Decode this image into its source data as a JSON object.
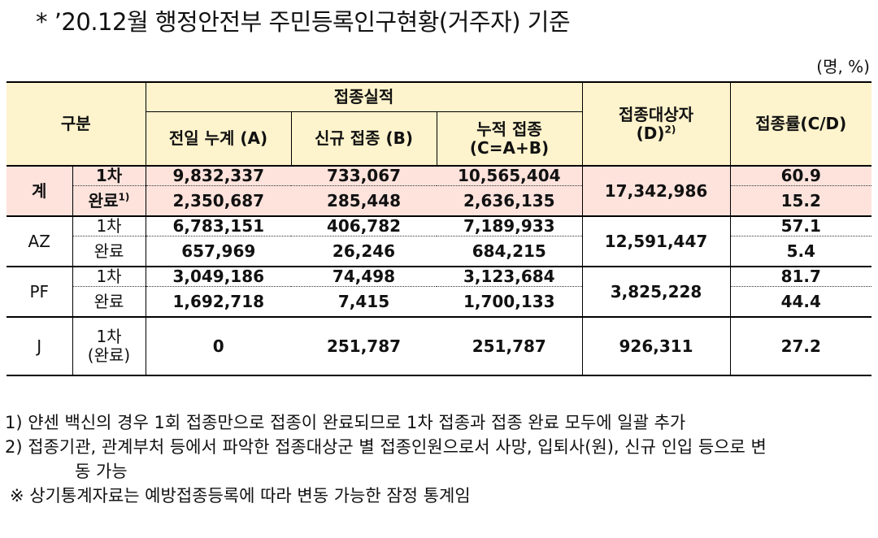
{
  "title": "* ’20.12월 행정안전부 주민등록인구현황(거주자) 기준",
  "unit": "(명, %)",
  "header": {
    "category": "구분",
    "performance": "접종실적",
    "prev_total": "전일 누계 (A)",
    "new_vacc": "신규 접종 (B)",
    "cum_line1": "누적 접종",
    "cum_line2": "(C=A+B)",
    "target_line1": "접종대상자",
    "target_line2": "(D)",
    "target_sup": "2)",
    "rate": "접종률(C/D)"
  },
  "rows": {
    "total": {
      "label": "계",
      "first": {
        "label": "1차",
        "prev": "9,832,337",
        "new": "733,067",
        "cum": "10,565,404",
        "rate": "60.9"
      },
      "done": {
        "label": "완료",
        "sup": "1)",
        "prev": "2,350,687",
        "new": "285,448",
        "cum": "2,636,135",
        "rate": "15.2"
      },
      "target": "17,342,986"
    },
    "az": {
      "label": "AZ",
      "first": {
        "label": "1차",
        "prev": "6,783,151",
        "new": "406,782",
        "cum": "7,189,933",
        "rate": "57.1"
      },
      "done": {
        "label": "완료",
        "prev": "657,969",
        "new": "26,246",
        "cum": "684,215",
        "rate": "5.4"
      },
      "target": "12,591,447"
    },
    "pf": {
      "label": "PF",
      "first": {
        "label": "1차",
        "prev": "3,049,186",
        "new": "74,498",
        "cum": "3,123,684",
        "rate": "81.7"
      },
      "done": {
        "label": "완료",
        "prev": "1,692,718",
        "new": "7,415",
        "cum": "1,700,133",
        "rate": "44.4"
      },
      "target": "3,825,228"
    },
    "j": {
      "label": "J",
      "sub1": "1차",
      "sub2": "(완료)",
      "prev": "0",
      "new": "251,787",
      "cum": "251,787",
      "target": "926,311",
      "rate": "27.2"
    }
  },
  "notes": {
    "n1": "1) 얀센 백신의 경우 1회 접종만으로 접종이 완료되므로 1차 접종과 접종 완료 모두에 일괄 추가",
    "n2a": "2) 접종기관, 관계부처 등에서 파악한 접종대상군 별 접종인원으로서 사망, 입퇴사(원), 신규 인입 등으로 변",
    "n2b": "동 가능",
    "n3": "※ 상기통계자료는 예방접종등록에 따라 변동 가능한 잠정 통계임"
  }
}
